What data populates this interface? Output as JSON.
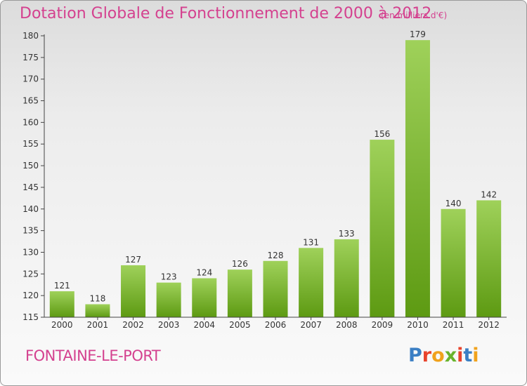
{
  "title": "Dotation Globale de Fonctionnement de 2000 à 2012",
  "unit_note": "(en milliers d'€)",
  "city": "FONTAINE-LE-PORT",
  "logo": {
    "text": "Proxiti",
    "letter_colors": [
      "#3b7fc4",
      "#e8432c",
      "#f0a21c",
      "#68b32c",
      "#e8432c",
      "#3b7fc4",
      "#f0a21c"
    ]
  },
  "colors": {
    "accent": "#d4418f",
    "bar_top": "#9fd15a",
    "bar_bottom": "#5d9a12"
  },
  "chart_data": {
    "type": "bar",
    "categories": [
      "2000",
      "2001",
      "2002",
      "2003",
      "2004",
      "2005",
      "2006",
      "2007",
      "2008",
      "2009",
      "2010",
      "2011",
      "2012"
    ],
    "values": [
      121,
      118,
      127,
      123,
      124,
      126,
      128,
      131,
      133,
      156,
      179,
      140,
      142
    ],
    "title": "Dotation Globale de Fonctionnement de 2000 à 2012",
    "xlabel": "",
    "ylabel": "",
    "ylim": [
      115,
      180
    ],
    "yticks": [
      115,
      120,
      125,
      130,
      135,
      140,
      145,
      150,
      155,
      160,
      165,
      170,
      175,
      180
    ],
    "grid": false,
    "legend": "none"
  }
}
